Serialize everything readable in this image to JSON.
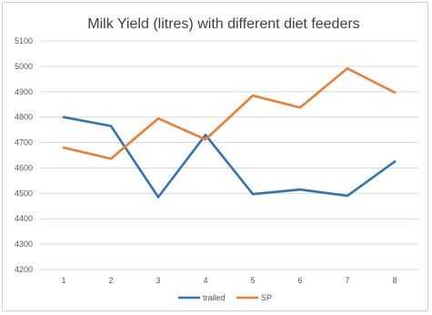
{
  "chart_data": {
    "type": "line",
    "title": "Milk Yield (litres) with different diet feeders",
    "xlabel": "",
    "ylabel": "",
    "categories": [
      "1",
      "2",
      "3",
      "4",
      "5",
      "6",
      "7",
      "8"
    ],
    "ylim": [
      4200,
      5100
    ],
    "yticks": [
      4200,
      4300,
      4400,
      4500,
      4600,
      4700,
      4800,
      4900,
      5000,
      5100
    ],
    "grid": true,
    "legend_position": "bottom",
    "series": [
      {
        "name": "trailed",
        "color": "#2e75b6",
        "values": [
          4800,
          4765,
          4485,
          4730,
          4497,
          4515,
          4490,
          4625
        ]
      },
      {
        "name": "SP",
        "color": "#ed7d31",
        "values": [
          4680,
          4636,
          4795,
          4712,
          4885,
          4838,
          4992,
          4897
        ]
      }
    ]
  }
}
